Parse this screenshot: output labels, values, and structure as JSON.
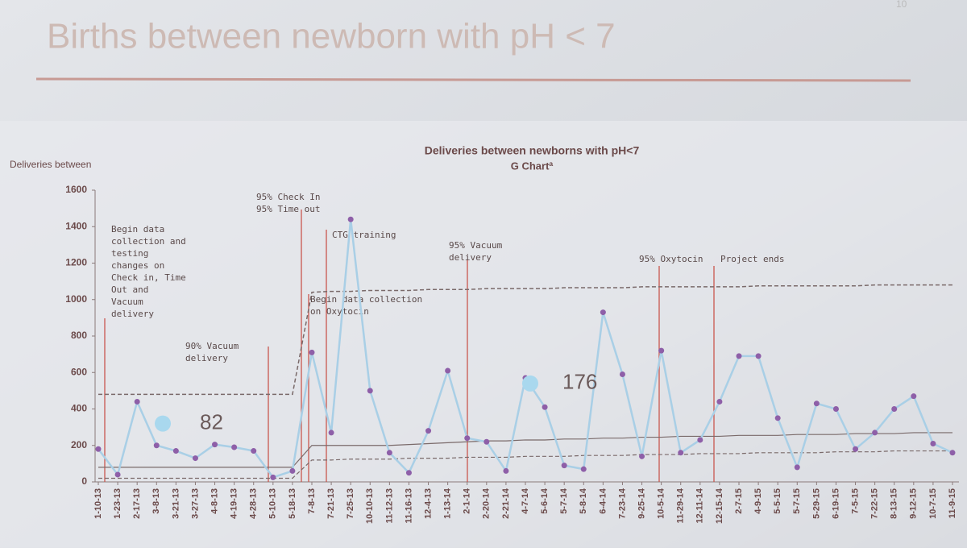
{
  "slide": {
    "title": "Births between newborn with pH < 7",
    "page_number": "10"
  },
  "chart_data": {
    "type": "line",
    "title": "Deliveries between newborns with pH<7",
    "subtitle": "G Chartª",
    "y_label": "Deliveries between",
    "categories": [
      "1-10-13",
      "1-23-13",
      "2-17-13",
      "3-8-13",
      "3-21-13",
      "3-27-13",
      "4-8-13",
      "4-19-13",
      "4-28-13",
      "5-10-13",
      "5-18-13",
      "7-8-13",
      "7-21-13",
      "7-25-13",
      "10-10-13",
      "11-12-13",
      "11-16-13",
      "12-4-13",
      "1-13-14",
      "2-1-14",
      "2-20-14",
      "2-21-14",
      "4-7-14",
      "5-6-14",
      "5-7-14",
      "5-8-14",
      "6-4-14",
      "7-23-14",
      "9-25-14",
      "10-5-14",
      "11-29-14",
      "12-11-14",
      "12-15-14",
      "2-7-15",
      "4-9-15",
      "5-5-15",
      "5-7-15",
      "5-29-15",
      "6-19-15",
      "7-5-15",
      "7-22-15",
      "8-13-15",
      "9-12-15",
      "10-7-15",
      "11-9-15"
    ],
    "values": [
      180,
      40,
      440,
      200,
      170,
      130,
      205,
      190,
      170,
      25,
      60,
      710,
      270,
      1440,
      500,
      160,
      50,
      280,
      610,
      240,
      220,
      60,
      570,
      410,
      90,
      70,
      930,
      590,
      140,
      720,
      160,
      230,
      440,
      690,
      690,
      350,
      80,
      430,
      400,
      180,
      270,
      400,
      470,
      210,
      160
    ],
    "color": "#a9cfe6",
    "point_color": "#8e5fa8",
    "center_line": [
      80,
      80,
      80,
      80,
      80,
      80,
      80,
      80,
      80,
      80,
      80,
      200,
      200,
      200,
      200,
      200,
      205,
      210,
      215,
      220,
      225,
      225,
      230,
      230,
      235,
      235,
      240,
      240,
      245,
      245,
      250,
      250,
      250,
      255,
      255,
      255,
      260,
      260,
      260,
      265,
      265,
      265,
      270,
      270,
      270
    ],
    "upper_limit": [
      480,
      480,
      480,
      480,
      480,
      480,
      480,
      480,
      480,
      480,
      480,
      1040,
      1045,
      1045,
      1050,
      1050,
      1050,
      1055,
      1055,
      1055,
      1060,
      1060,
      1060,
      1060,
      1065,
      1065,
      1065,
      1065,
      1070,
      1070,
      1070,
      1070,
      1070,
      1070,
      1075,
      1075,
      1075,
      1075,
      1075,
      1075,
      1080,
      1080,
      1080,
      1080,
      1080
    ],
    "lower_limit": [
      20,
      20,
      20,
      20,
      20,
      20,
      20,
      20,
      20,
      20,
      20,
      120,
      120,
      125,
      125,
      125,
      130,
      130,
      130,
      135,
      135,
      135,
      140,
      140,
      140,
      145,
      145,
      145,
      150,
      150,
      150,
      155,
      155,
      155,
      160,
      160,
      160,
      160,
      165,
      165,
      165,
      170,
      170,
      170,
      170
    ],
    "ylim": [
      0,
      1600
    ],
    "yticks": [
      0,
      200,
      400,
      600,
      800,
      1000,
      1200,
      1400,
      1600
    ],
    "annotations": [
      {
        "lines": [
          "Begin data",
          "collection and",
          "testing",
          "changes on",
          "Check in, Time",
          "Out and",
          "Vacuum",
          "delivery"
        ]
      },
      {
        "lines": [
          "90% Vacuum",
          "delivery"
        ]
      },
      {
        "lines": [
          "95% Check In",
          "95% Time out"
        ]
      },
      {
        "lines": [
          "Begin data collection",
          "on Oxytocin"
        ]
      },
      {
        "lines": [
          "CTG training"
        ]
      },
      {
        "lines": [
          "95% Vacuum",
          "delivery"
        ]
      },
      {
        "lines": [
          "95% Oxytocin"
        ]
      },
      {
        "lines": [
          "Project ends"
        ]
      }
    ],
    "callouts": [
      {
        "text": "82",
        "value": 82
      },
      {
        "text": "176",
        "value": 176
      }
    ]
  }
}
